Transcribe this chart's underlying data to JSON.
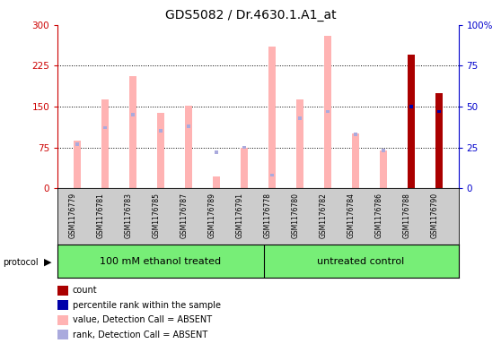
{
  "title": "GDS5082 / Dr.4630.1.A1_at",
  "samples": [
    "GSM1176779",
    "GSM1176781",
    "GSM1176783",
    "GSM1176785",
    "GSM1176787",
    "GSM1176789",
    "GSM1176791",
    "GSM1176778",
    "GSM1176780",
    "GSM1176782",
    "GSM1176784",
    "GSM1176786",
    "GSM1176788",
    "GSM1176790"
  ],
  "pink_values": [
    88,
    163,
    205,
    138,
    152,
    22,
    75,
    260,
    163,
    280,
    100,
    70,
    0,
    175
  ],
  "blue_rank_values": [
    27,
    37,
    45,
    35,
    38,
    22,
    25,
    8,
    43,
    47,
    33,
    23,
    0,
    0
  ],
  "red_count_values": [
    0,
    0,
    0,
    0,
    0,
    0,
    0,
    0,
    0,
    0,
    0,
    0,
    245,
    175
  ],
  "blue_pct_values": [
    0,
    0,
    0,
    0,
    0,
    0,
    0,
    0,
    0,
    0,
    0,
    0,
    50,
    47
  ],
  "ylim_left": [
    0,
    300
  ],
  "ylim_right": [
    0,
    100
  ],
  "yticks_left": [
    0,
    75,
    150,
    225,
    300
  ],
  "yticks_right": [
    0,
    25,
    50,
    75,
    100
  ],
  "group1_label": "100 mM ethanol treated",
  "group2_label": "untreated control",
  "group1_count": 7,
  "group2_count": 7,
  "protocol_label": "protocol",
  "pink_color": "#FFB3B3",
  "blue_rank_color": "#AAAADD",
  "red_color": "#AA0000",
  "blue_pct_color": "#0000AA",
  "left_axis_color": "#CC0000",
  "right_axis_color": "#0000CC",
  "group_bg_color": "#77EE77",
  "sample_bg_color": "#CCCCCC",
  "bar_width": 0.25,
  "rank_bar_width": 0.12,
  "legend_items": [
    {
      "label": "count",
      "color": "#AA0000"
    },
    {
      "label": "percentile rank within the sample",
      "color": "#0000AA"
    },
    {
      "label": "value, Detection Call = ABSENT",
      "color": "#FFB3B3"
    },
    {
      "label": "rank, Detection Call = ABSENT",
      "color": "#AAAADD"
    }
  ]
}
